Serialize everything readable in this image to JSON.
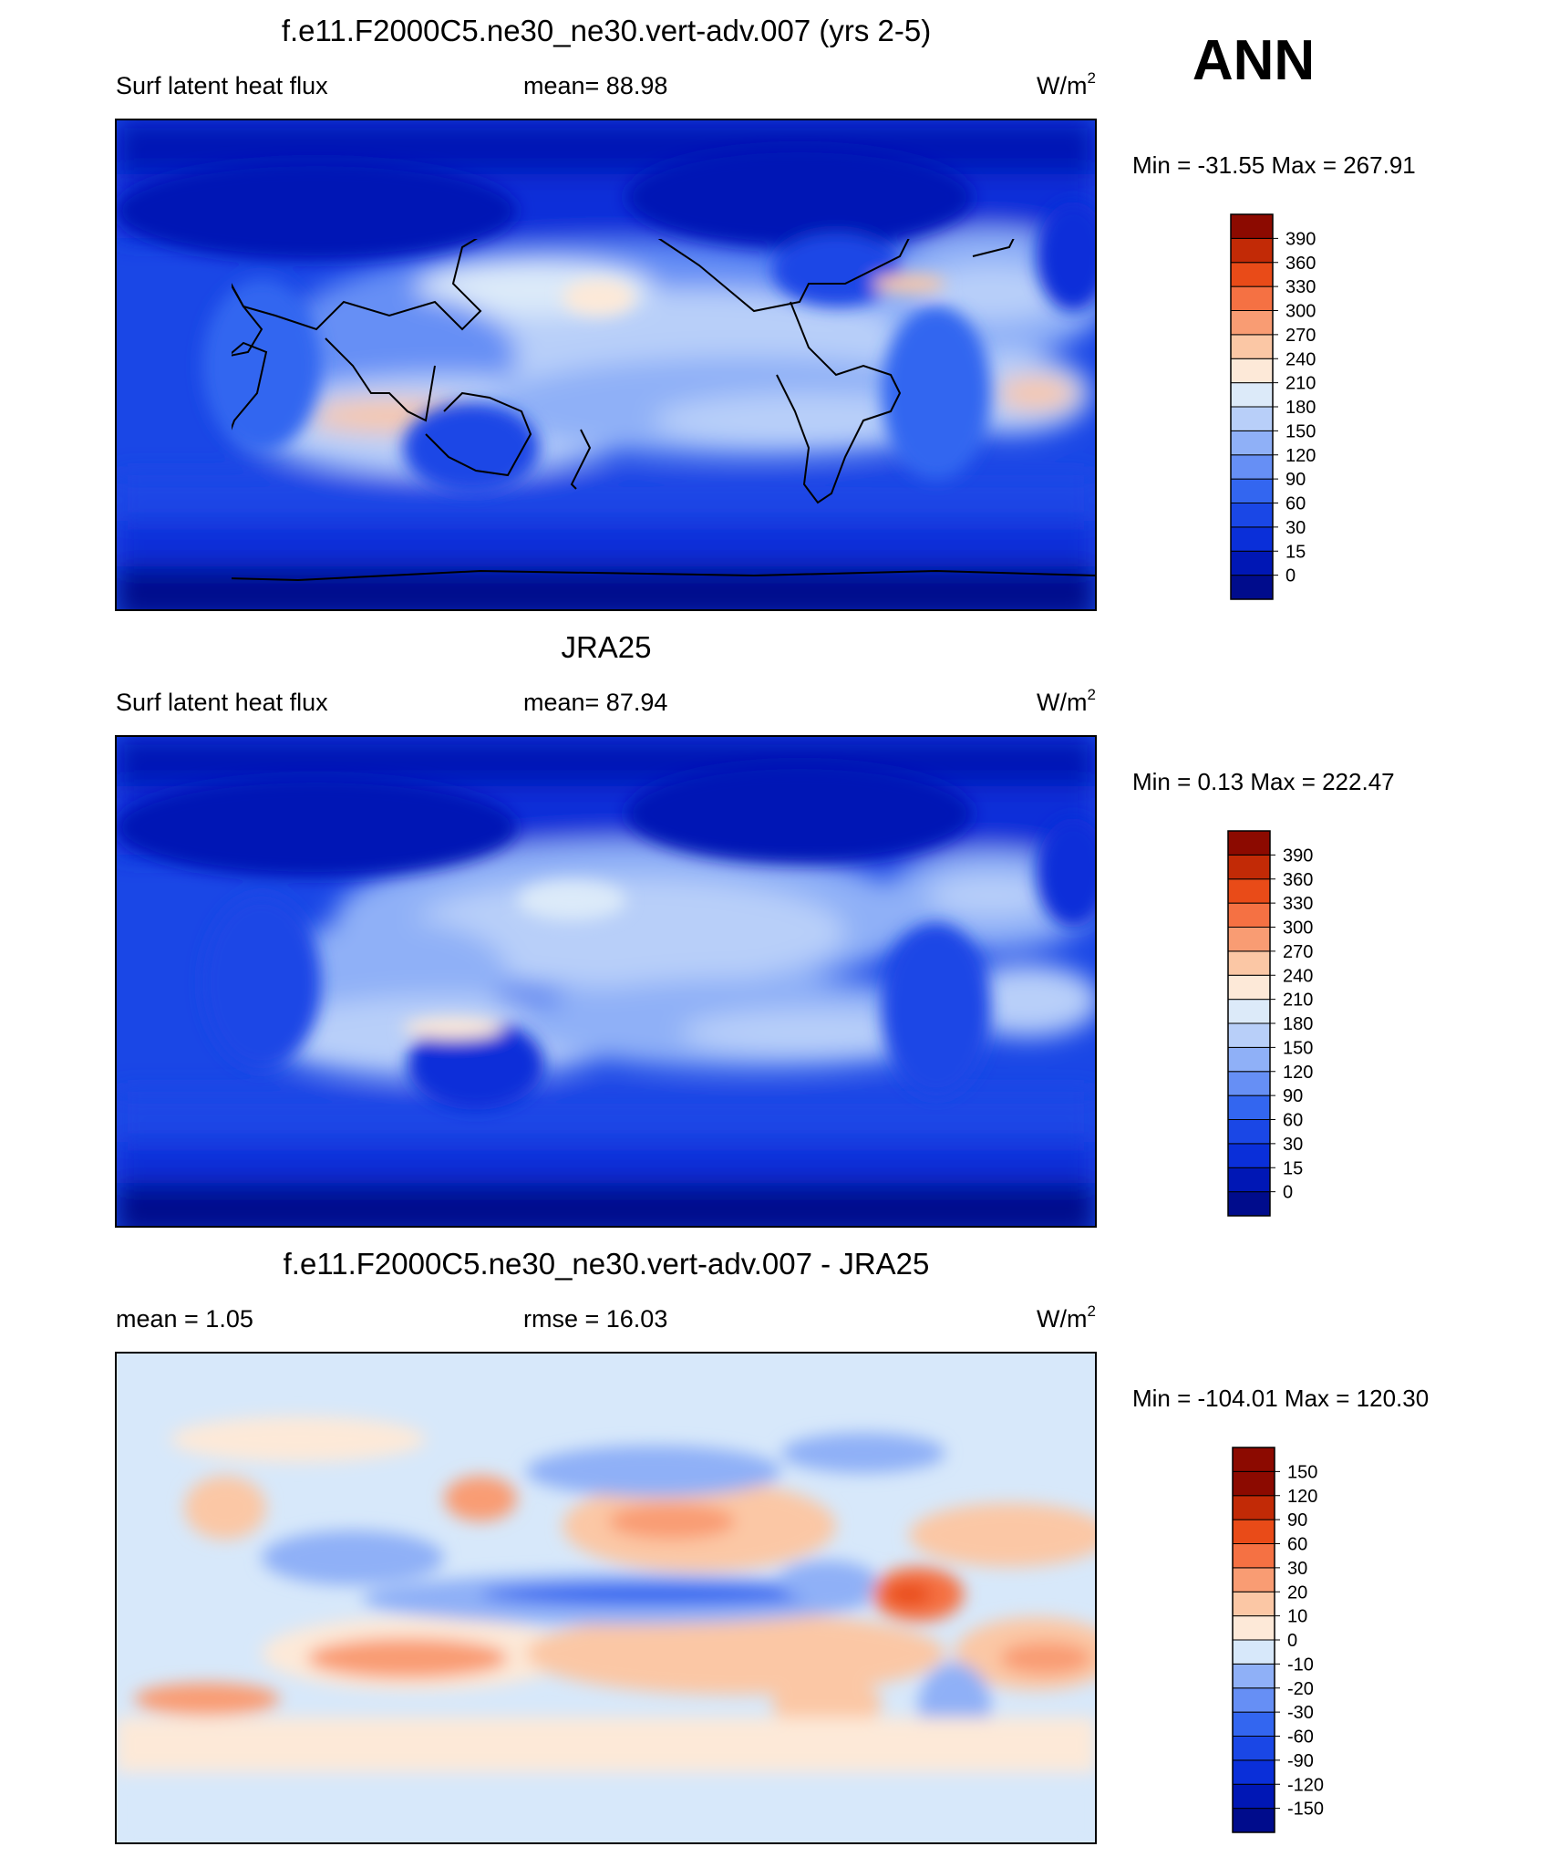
{
  "season": "ANN",
  "chart_data": [
    {
      "type": "heatmap",
      "title": "f.e11.F2000C5.ne30_ne30.vert-adv.007 (yrs 2-5)",
      "left_label": "Surf latent heat flux",
      "center_label": "mean=  88.98",
      "units": "W/m",
      "units_sup": "2",
      "minmax": "Min = -31.55 Max = 267.91",
      "stats": {
        "mean": 88.98,
        "min": -31.55,
        "max": 267.91
      },
      "colorbar": {
        "levels": [
          "0",
          "15",
          "30",
          "60",
          "90",
          "120",
          "150",
          "180",
          "210",
          "240",
          "270",
          "300",
          "330",
          "360",
          "390"
        ],
        "colors": [
          "#000c8c",
          "#0017b5",
          "#0a2fd9",
          "#1a47e6",
          "#3366f0",
          "#668ff5",
          "#8fb0f7",
          "#b8cff9",
          "#dceaf9",
          "#fde9d8",
          "#fbc7a5",
          "#f99c73",
          "#f57143",
          "#e94b18",
          "#c22a06",
          "#8c0a00"
        ]
      }
    },
    {
      "type": "heatmap",
      "title": "JRA25",
      "left_label": "Surf latent heat flux",
      "center_label": "mean=  87.94",
      "units": "W/m",
      "units_sup": "2",
      "minmax": "Min =    0.13 Max = 222.47",
      "stats": {
        "mean": 87.94,
        "min": 0.13,
        "max": 222.47
      },
      "colorbar": {
        "levels": [
          "0",
          "15",
          "30",
          "60",
          "90",
          "120",
          "150",
          "180",
          "210",
          "240",
          "270",
          "300",
          "330",
          "360",
          "390"
        ],
        "colors": [
          "#000c8c",
          "#0017b5",
          "#0a2fd9",
          "#1a47e6",
          "#3366f0",
          "#668ff5",
          "#8fb0f7",
          "#b8cff9",
          "#dceaf9",
          "#fde9d8",
          "#fbc7a5",
          "#f99c73",
          "#f57143",
          "#e94b18",
          "#c22a06",
          "#8c0a00"
        ]
      }
    },
    {
      "type": "heatmap",
      "title": "f.e11.F2000C5.ne30_ne30.vert-adv.007 - JRA25",
      "left_label": "mean =    1.05",
      "center_label": "rmse =  16.03",
      "units": "W/m",
      "units_sup": "2",
      "minmax": "Min = -104.01 Max = 120.30",
      "stats": {
        "mean": 1.05,
        "rmse": 16.03,
        "min": -104.01,
        "max": 120.3
      },
      "colorbar": {
        "levels": [
          "-150",
          "-120",
          "-90",
          "-60",
          "-30",
          "-20",
          "-10",
          "0",
          "10",
          "20",
          "30",
          "60",
          "90",
          "120",
          "150"
        ],
        "colors": [
          "#000c8c",
          "#0017b5",
          "#0a2fd9",
          "#1a47e6",
          "#3366f0",
          "#668ff5",
          "#8fb0f7",
          "#d7e8fa",
          "#fde9d8",
          "#fbc7a5",
          "#f99c73",
          "#f57143",
          "#e94b18",
          "#c22a06",
          "#8c0a00",
          "#8c0a00"
        ]
      }
    }
  ]
}
